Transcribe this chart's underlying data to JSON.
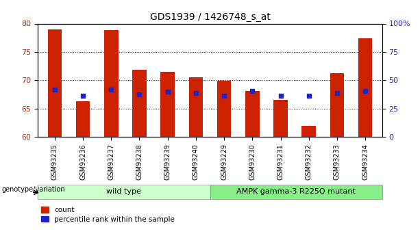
{
  "title": "GDS1939 / 1426748_s_at",
  "samples": [
    "GSM93235",
    "GSM93236",
    "GSM93237",
    "GSM93238",
    "GSM93239",
    "GSM93240",
    "GSM93229",
    "GSM93230",
    "GSM93231",
    "GSM93232",
    "GSM93233",
    "GSM93234"
  ],
  "count_values": [
    79.0,
    66.3,
    78.8,
    71.8,
    71.5,
    70.5,
    69.9,
    68.1,
    66.5,
    62.0,
    71.3,
    77.4
  ],
  "percentile_values": [
    68.3,
    67.3,
    68.3,
    67.5,
    68.0,
    67.8,
    67.3,
    68.1,
    67.3,
    67.3,
    67.8,
    68.1
  ],
  "bar_bottom": 60,
  "ylim_left": [
    60,
    80
  ],
  "ylim_right": [
    0,
    100
  ],
  "yticks_left": [
    60,
    65,
    70,
    75,
    80
  ],
  "yticks_right": [
    0,
    25,
    50,
    75,
    100
  ],
  "ytick_labels_right": [
    "0",
    "25",
    "50",
    "75",
    "100%"
  ],
  "bar_color": "#cc2200",
  "percentile_color": "#2222cc",
  "grid_color": "black",
  "group1_label": "wild type",
  "group2_label": "AMPK gamma-3 R225Q mutant",
  "group1_indices": [
    0,
    1,
    2,
    3,
    4,
    5
  ],
  "group2_indices": [
    6,
    7,
    8,
    9,
    10,
    11
  ],
  "group1_color": "#ccffcc",
  "group2_color": "#88ee88",
  "bar_width": 0.5,
  "tick_label_color_left": "#cc2200",
  "tick_label_color_right": "#2222cc",
  "legend_count_label": "count",
  "legend_percentile_label": "percentile rank within the sample",
  "genotype_label": "genotype/variation",
  "tick_label_size": 7,
  "title_fontsize": 10
}
